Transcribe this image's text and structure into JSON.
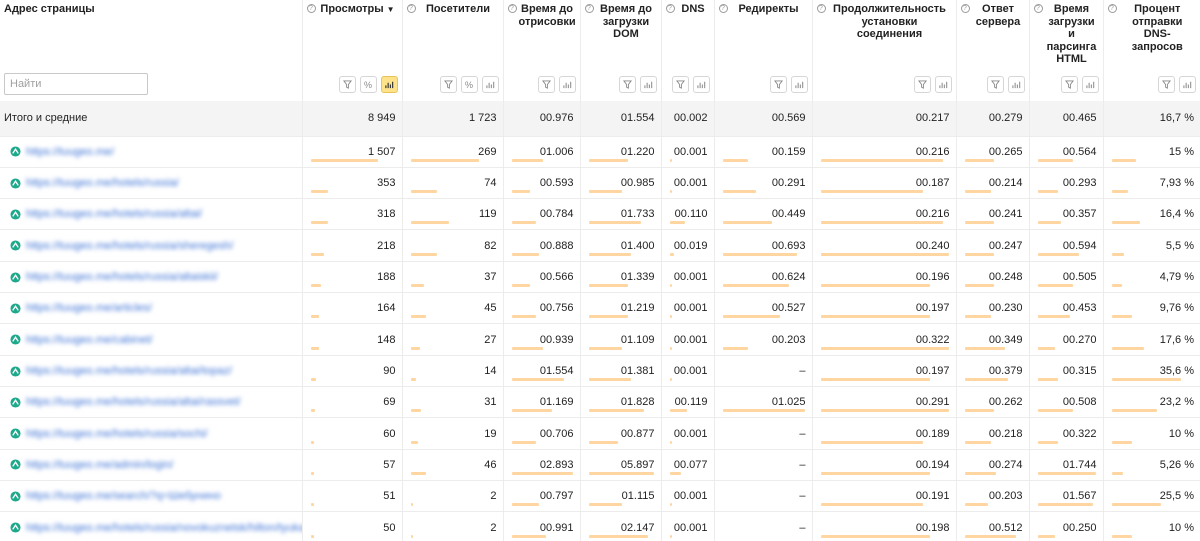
{
  "columns": [
    {
      "label": "Адрес страницы"
    },
    {
      "label": "Просмотры",
      "sort": "▼"
    },
    {
      "label": "Посетители"
    },
    {
      "label": "Время до отрисовки"
    },
    {
      "label": "Время до загрузки DOM"
    },
    {
      "label": "DNS"
    },
    {
      "label": "Редиректы"
    },
    {
      "label": "Продолжительность установки соединения"
    },
    {
      "label": "Ответ сервера"
    },
    {
      "label": "Время загрузки и парсинга HTML"
    },
    {
      "label": "Процент отправки DNS-запросов"
    }
  ],
  "search": {
    "placeholder": "Найти"
  },
  "controls": {
    "percent_label": "%",
    "filter_icon": "filter-icon",
    "chart_icon": "bar-chart-icon"
  },
  "colors": {
    "active_toggle": "#ffe38a",
    "bar": "#ffd6a1",
    "url_icon": "#1fa98c",
    "link": "#3d73d6"
  },
  "total": {
    "label": "Итого и средние",
    "values": [
      "8 949",
      "1 723",
      "00.976",
      "01.554",
      "00.002",
      "00.569",
      "00.217",
      "00.279",
      "00.465",
      "16,7 %"
    ]
  },
  "rows": [
    {
      "url": "https://tuugeo.me/",
      "values": [
        "1 507",
        "269",
        "01.006",
        "01.220",
        "00.001",
        "00.159",
        "00.216",
        "00.265",
        "00.564",
        "15 %"
      ],
      "bars": [
        0.8,
        0.8,
        0.5,
        0.6,
        0.05,
        0.3,
        0.95,
        0.5,
        0.6,
        0.3
      ]
    },
    {
      "url": "https://tuugeo.me/hotels/russia/",
      "values": [
        "353",
        "74",
        "00.593",
        "00.985",
        "00.001",
        "00.291",
        "00.187",
        "00.214",
        "00.293",
        "7,93 %"
      ],
      "bars": [
        0.2,
        0.3,
        0.3,
        0.5,
        0.05,
        0.4,
        0.8,
        0.45,
        0.35,
        0.2
      ]
    },
    {
      "url": "https://tuugeo.me/hotels/russia/altai/",
      "values": [
        "318",
        "119",
        "00.784",
        "01.733",
        "00.110",
        "00.449",
        "00.216",
        "00.241",
        "00.357",
        "16,4 %"
      ],
      "bars": [
        0.2,
        0.45,
        0.4,
        0.8,
        0.4,
        0.6,
        0.95,
        0.5,
        0.4,
        0.35
      ]
    },
    {
      "url": "https://tuugeo.me/hotels/russia/sheregesh/",
      "values": [
        "218",
        "82",
        "00.888",
        "01.400",
        "00.019",
        "00.693",
        "00.240",
        "00.247",
        "00.594",
        "5,5 %"
      ],
      "bars": [
        0.15,
        0.3,
        0.45,
        0.65,
        0.1,
        0.9,
        1.0,
        0.5,
        0.7,
        0.15
      ]
    },
    {
      "url": "https://tuugeo.me/hotels/russia/altaiskii/",
      "values": [
        "188",
        "37",
        "00.566",
        "01.339",
        "00.001",
        "00.624",
        "00.196",
        "00.248",
        "00.505",
        "4,79 %"
      ],
      "bars": [
        0.12,
        0.15,
        0.3,
        0.6,
        0.05,
        0.8,
        0.85,
        0.5,
        0.6,
        0.12
      ]
    },
    {
      "url": "https://tuugeo.me/articles/",
      "values": [
        "164",
        "45",
        "00.756",
        "01.219",
        "00.001",
        "00.527",
        "00.197",
        "00.230",
        "00.453",
        "9,76 %"
      ],
      "bars": [
        0.1,
        0.18,
        0.4,
        0.6,
        0.05,
        0.7,
        0.85,
        0.45,
        0.55,
        0.25
      ]
    },
    {
      "url": "https://tuugeo.me/cabinet/",
      "values": [
        "148",
        "27",
        "00.939",
        "01.109",
        "00.001",
        "00.203",
        "00.322",
        "00.349",
        "00.270",
        "17,6 %"
      ],
      "bars": [
        0.1,
        0.1,
        0.5,
        0.5,
        0.05,
        0.3,
        1.0,
        0.7,
        0.3,
        0.4
      ]
    },
    {
      "url": "https://tuugeo.me/hotels/russia/altai/topaz/",
      "values": [
        "90",
        "14",
        "01.554",
        "01.381",
        "00.001",
        "–",
        "00.197",
        "00.379",
        "00.315",
        "35,6 %"
      ],
      "bars": [
        0.06,
        0.06,
        0.85,
        0.65,
        0.05,
        0,
        0.85,
        0.75,
        0.35,
        0.85
      ]
    },
    {
      "url": "https://tuugeo.me/hotels/russia/altai/rassvet/",
      "values": [
        "69",
        "31",
        "01.169",
        "01.828",
        "00.119",
        "01.025",
        "00.291",
        "00.262",
        "00.508",
        "23,2 %"
      ],
      "bars": [
        0.05,
        0.12,
        0.65,
        0.85,
        0.45,
        1.0,
        1.0,
        0.5,
        0.6,
        0.55
      ]
    },
    {
      "url": "https://tuugeo.me/hotels/russia/sochi/",
      "values": [
        "60",
        "19",
        "00.706",
        "00.877",
        "00.001",
        "–",
        "00.189",
        "00.218",
        "00.322",
        "10 %"
      ],
      "bars": [
        0.04,
        0.08,
        0.4,
        0.45,
        0.05,
        0,
        0.8,
        0.45,
        0.35,
        0.25
      ]
    },
    {
      "url": "https://tuugeo.me/admin/login/",
      "values": [
        "57",
        "46",
        "02.893",
        "05.897",
        "00.077",
        "–",
        "00.194",
        "00.274",
        "01.744",
        "5,26 %"
      ],
      "bars": [
        0.04,
        0.18,
        1.0,
        1.0,
        0.3,
        0,
        0.85,
        0.55,
        1.0,
        0.13
      ]
    },
    {
      "url": "https://tuugeo.me/search/?q=Шебунино",
      "values": [
        "51",
        "2",
        "00.797",
        "01.115",
        "00.001",
        "–",
        "00.191",
        "00.203",
        "01.567",
        "25,5 %"
      ],
      "bars": [
        0.03,
        0.02,
        0.45,
        0.5,
        0.05,
        0,
        0.8,
        0.4,
        0.95,
        0.6
      ]
    },
    {
      "url": "https://tuugeo.me/hotels/russia/novokuznetsk/hilton/tyuka...",
      "values": [
        "50",
        "2",
        "00.991",
        "02.147",
        "00.001",
        "–",
        "00.198",
        "00.512",
        "00.250",
        "10 %"
      ],
      "bars": [
        0.03,
        0.02,
        0.55,
        0.9,
        0.05,
        0,
        0.85,
        0.9,
        0.3,
        0.25
      ]
    }
  ]
}
